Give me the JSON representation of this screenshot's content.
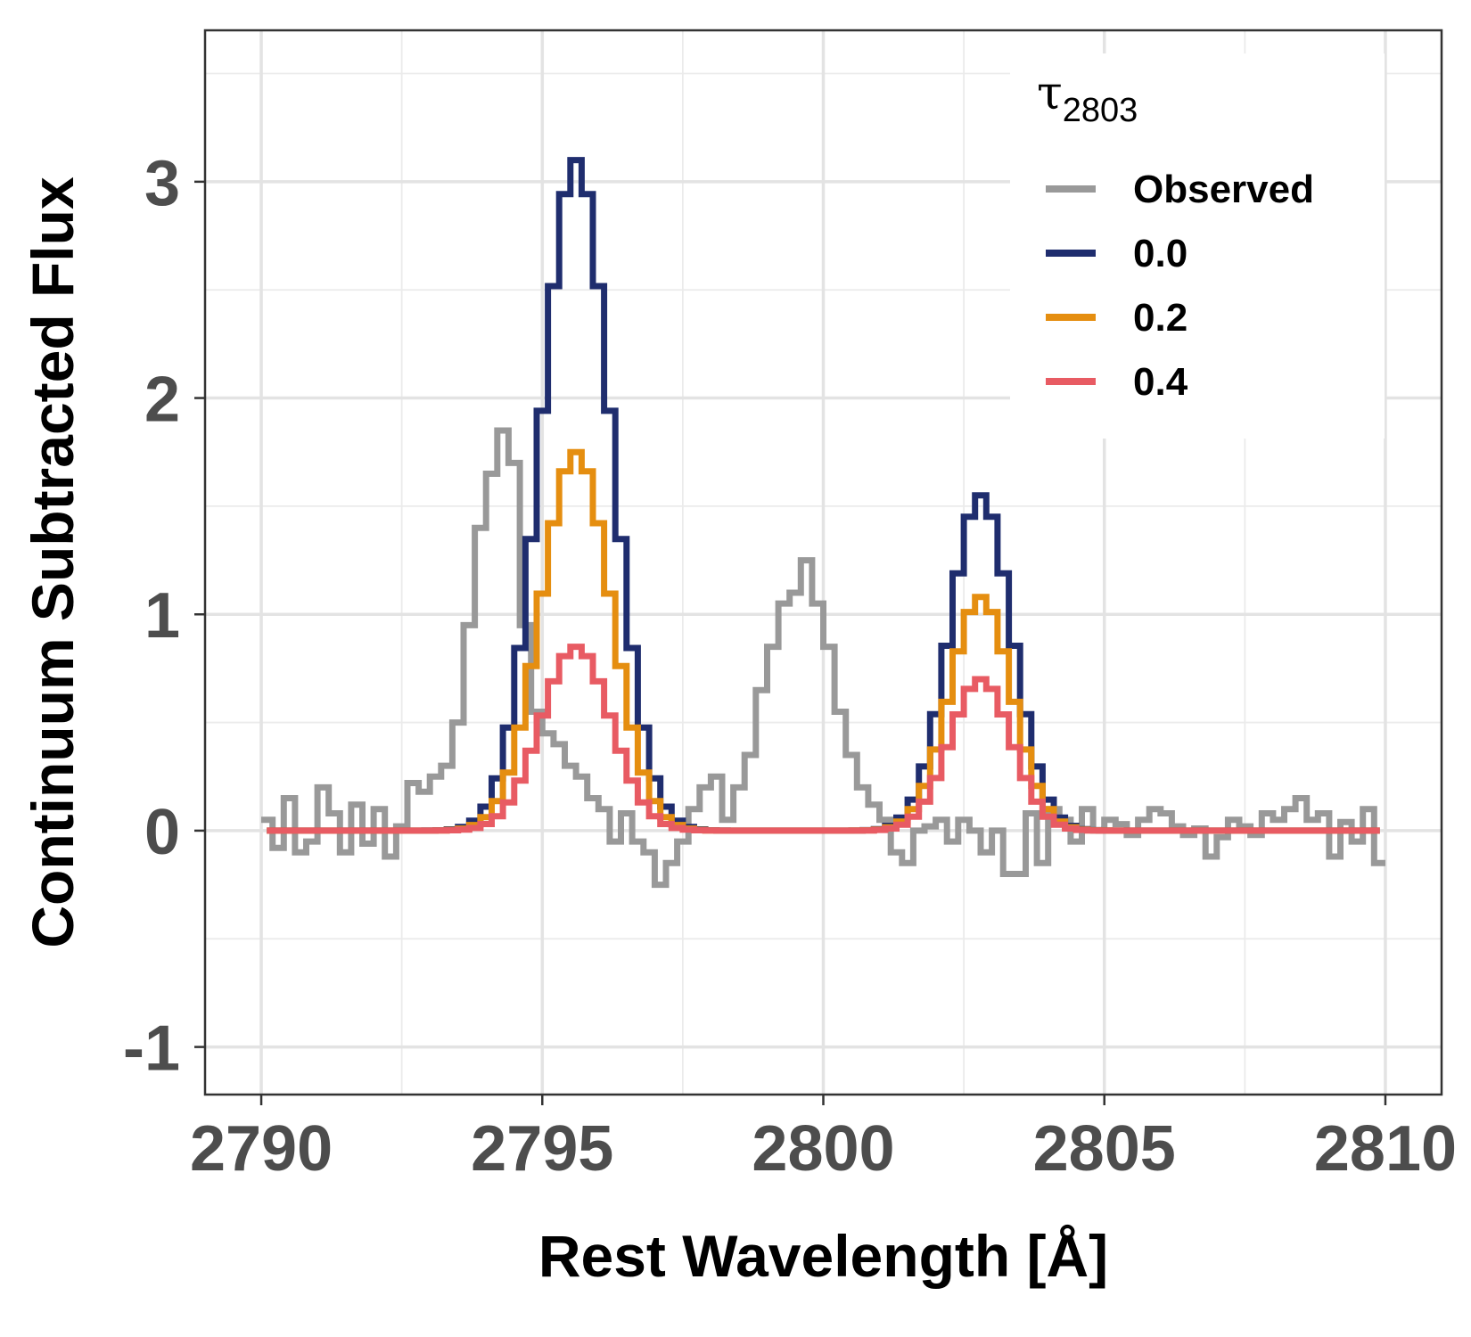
{
  "chart_data": {
    "type": "line",
    "step": true,
    "xlabel": "Rest Wavelength [Å]",
    "ylabel": "Continuum Subtracted Flux",
    "xlim": [
      2789.0,
      2811.0
    ],
    "ylim": [
      -1.22,
      3.7
    ],
    "xticks": [
      2790,
      2795,
      2800,
      2805,
      2810
    ],
    "xtick_labels": [
      "2790",
      "2795",
      "2800",
      "2805",
      "2810"
    ],
    "yticks": [
      -1,
      0,
      1,
      2,
      3
    ],
    "ytick_labels": [
      "-1",
      "0",
      "1",
      "2",
      "3"
    ],
    "grid": true,
    "legend": {
      "position": "top-right",
      "title_symbol": "τ",
      "title_subscript": "2803",
      "entries": [
        "Observed",
        "0.0",
        "0.2",
        "0.4"
      ]
    },
    "series": [
      {
        "name": "Observed",
        "color": "#999999",
        "model": false,
        "x": [
          2790.1,
          2790.3,
          2790.5,
          2790.7,
          2790.9,
          2791.1,
          2791.3,
          2791.5,
          2791.7,
          2791.9,
          2792.1,
          2792.3,
          2792.5,
          2792.7,
          2792.9,
          2793.1,
          2793.3,
          2793.5,
          2793.7,
          2793.9,
          2794.1,
          2794.3,
          2794.5,
          2794.7,
          2794.9,
          2795.1,
          2795.3,
          2795.5,
          2795.7,
          2795.9,
          2796.1,
          2796.3,
          2796.5,
          2796.7,
          2796.9,
          2797.1,
          2797.3,
          2797.5,
          2797.7,
          2797.9,
          2798.1,
          2798.3,
          2798.5,
          2798.7,
          2798.9,
          2799.1,
          2799.3,
          2799.5,
          2799.7,
          2799.9,
          2800.1,
          2800.3,
          2800.5,
          2800.7,
          2800.9,
          2801.1,
          2801.3,
          2801.5,
          2801.7,
          2801.9,
          2802.1,
          2802.3,
          2802.5,
          2802.7,
          2802.9,
          2803.1,
          2803.3,
          2803.5,
          2803.7,
          2803.9,
          2804.1,
          2804.3,
          2804.5,
          2804.7,
          2804.9,
          2805.1,
          2805.3,
          2805.5,
          2805.7,
          2805.9,
          2806.1,
          2806.3,
          2806.5,
          2806.7,
          2806.9,
          2807.1,
          2807.3,
          2807.5,
          2807.7,
          2807.9,
          2808.1,
          2808.3,
          2808.5,
          2808.7,
          2808.9,
          2809.1,
          2809.3,
          2809.5,
          2809.7,
          2809.9
        ],
        "y": [
          0.05,
          -0.08,
          0.15,
          -0.1,
          -0.05,
          0.2,
          0.08,
          -0.1,
          0.12,
          -0.06,
          0.1,
          -0.12,
          0.02,
          0.22,
          0.18,
          0.25,
          0.3,
          0.5,
          0.95,
          1.4,
          1.65,
          1.85,
          1.7,
          0.95,
          0.55,
          0.45,
          0.4,
          0.3,
          0.25,
          0.15,
          0.1,
          -0.05,
          0.08,
          -0.05,
          -0.1,
          -0.25,
          -0.15,
          -0.05,
          0.1,
          0.2,
          0.25,
          0.05,
          0.2,
          0.35,
          0.65,
          0.85,
          1.05,
          1.1,
          1.25,
          1.05,
          0.85,
          0.55,
          0.35,
          0.2,
          0.12,
          0.05,
          -0.1,
          -0.15,
          0.0,
          0.02,
          0.05,
          -0.05,
          0.05,
          0.0,
          -0.1,
          0.0,
          -0.2,
          -0.2,
          0.08,
          -0.15,
          0.1,
          0.05,
          -0.05,
          0.1,
          0.0,
          0.05,
          0.03,
          -0.02,
          0.05,
          0.1,
          0.08,
          0.02,
          -0.02,
          0.01,
          -0.12,
          -0.03,
          0.05,
          0.02,
          -0.02,
          0.08,
          0.05,
          0.1,
          0.15,
          0.05,
          0.08,
          -0.12,
          0.04,
          -0.05,
          0.1,
          -0.15
        ]
      },
      {
        "name": "0.0",
        "color": "#1f2d6e",
        "model": true,
        "amp1": 3.1,
        "amp2": 1.55
      },
      {
        "name": "0.2",
        "color": "#e58e10",
        "model": true,
        "amp1": 1.75,
        "amp2": 1.08
      },
      {
        "name": "0.4",
        "color": "#e85b63",
        "model": true,
        "amp1": 0.85,
        "amp2": 0.7
      }
    ],
    "model_params": {
      "center1": 2795.6,
      "center2": 2802.8,
      "sigma1": 0.62,
      "sigma2": 0.55,
      "x_start": 2790.2,
      "x_end": 2809.9,
      "step": 0.2
    }
  }
}
